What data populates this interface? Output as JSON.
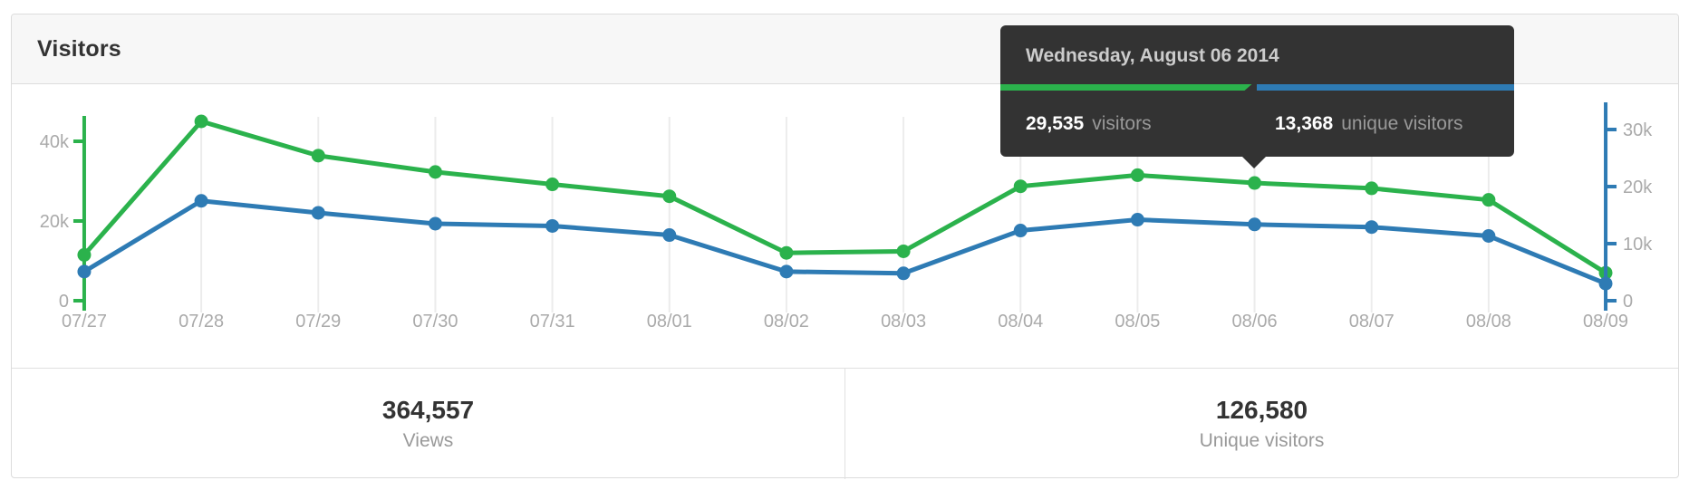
{
  "panel": {
    "title": "Visitors"
  },
  "tooltip": {
    "date": "Wednesday, August 06 2014",
    "visitors_value": "29,535",
    "visitors_label": "visitors",
    "unique_value": "13,368",
    "unique_label": "unique visitors"
  },
  "summary": {
    "views": {
      "value": "364,557",
      "label": "Views"
    },
    "unique": {
      "value": "126,580",
      "label": "Unique visitors"
    }
  },
  "colors": {
    "views_green": "#2bb24c",
    "unique_blue": "#2e7bb4",
    "grid_gray": "#ececec",
    "axis_label_gray": "#aaaaaa",
    "tooltip_bg": "#333333"
  },
  "chart_data": {
    "type": "line",
    "title": "Visitors",
    "x": [
      "07/27",
      "07/28",
      "07/29",
      "07/30",
      "07/31",
      "08/01",
      "08/02",
      "08/03",
      "08/04",
      "08/05",
      "08/06",
      "08/07",
      "08/08",
      "08/09"
    ],
    "series": [
      {
        "name": "visitors (views)",
        "color": "#2bb24c",
        "axis": "left",
        "values": [
          11500,
          45000,
          36400,
          32300,
          29200,
          26200,
          12000,
          12400,
          28700,
          31500,
          29535,
          28200,
          25300,
          7000
        ]
      },
      {
        "name": "unique visitors",
        "color": "#2e7bb4",
        "axis": "right",
        "values": [
          5100,
          17500,
          15400,
          13500,
          13100,
          11500,
          5100,
          4800,
          12300,
          14200,
          13368,
          12900,
          11350,
          3000
        ]
      }
    ],
    "left_axis": {
      "tick_labels": [
        "0",
        "20k",
        "40k"
      ],
      "tick_values": [
        0,
        20000,
        40000
      ],
      "range": [
        0,
        46000
      ],
      "color": "#2bb24c"
    },
    "right_axis": {
      "tick_labels": [
        "0",
        "10k",
        "20k",
        "30k"
      ],
      "tick_values": [
        0,
        10000,
        20000,
        30000
      ],
      "range": [
        0,
        35000
      ],
      "color": "#2e7bb4"
    },
    "grid": true,
    "legend_position": "none",
    "highlighted_x": "08/06"
  }
}
